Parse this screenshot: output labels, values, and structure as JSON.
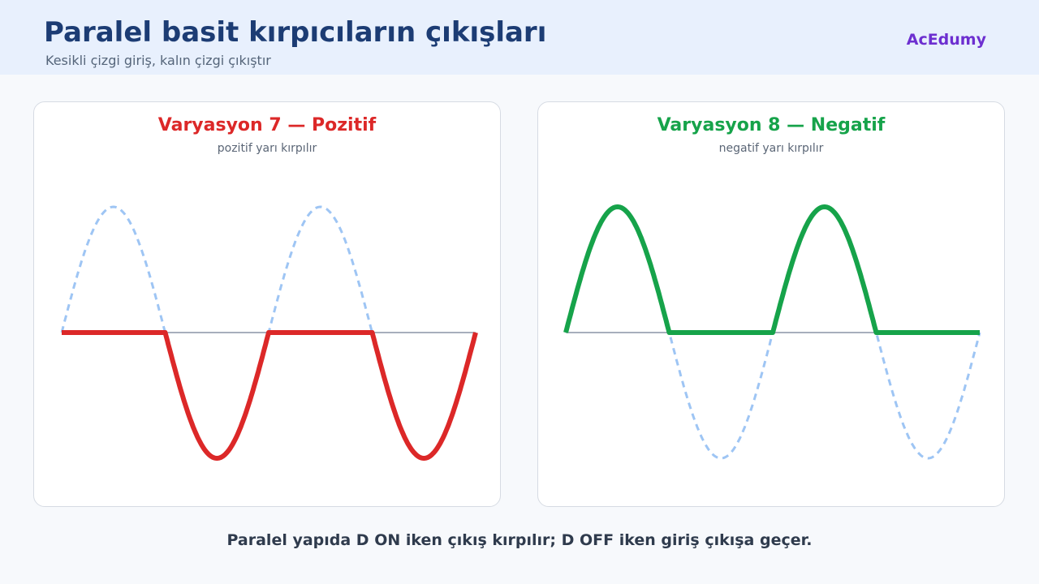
{
  "header": {
    "title": "Paralel basit kırpıcıların çıkışları",
    "subtitle": "Kesikli çizgi giriş, kalın çizgi çıkıştır",
    "brand": "AcEdumy"
  },
  "colors": {
    "input": "#9ec5f4",
    "axis": "#8a94a6",
    "positive": "#dc2828",
    "negative": "#16a34a"
  },
  "panels": [
    {
      "title": "Varyasyon 7 — Pozitif",
      "subtitle": "pozitif yarı kırpılır",
      "color": "#dc2828",
      "clip": "positive"
    },
    {
      "title": "Varyasyon 8 — Negatif",
      "subtitle": "negatif yarı kırpılır",
      "color": "#16a34a",
      "clip": "negative"
    }
  ],
  "chart_data": {
    "type": "line",
    "input_signal": "sine",
    "periods": 2,
    "amplitude": 1
  },
  "footer": "Paralel yapıda D ON iken çıkış kırpılır; D OFF iken giriş çıkışa geçer."
}
